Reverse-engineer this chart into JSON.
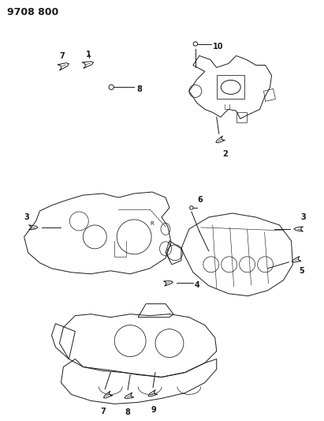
{
  "title": "9708 800",
  "bg_color": "#ffffff",
  "line_color": "#1a1a1a",
  "title_fontsize": 9,
  "label_fontsize": 7,
  "figsize": [
    4.11,
    5.33
  ],
  "dpi": 100
}
